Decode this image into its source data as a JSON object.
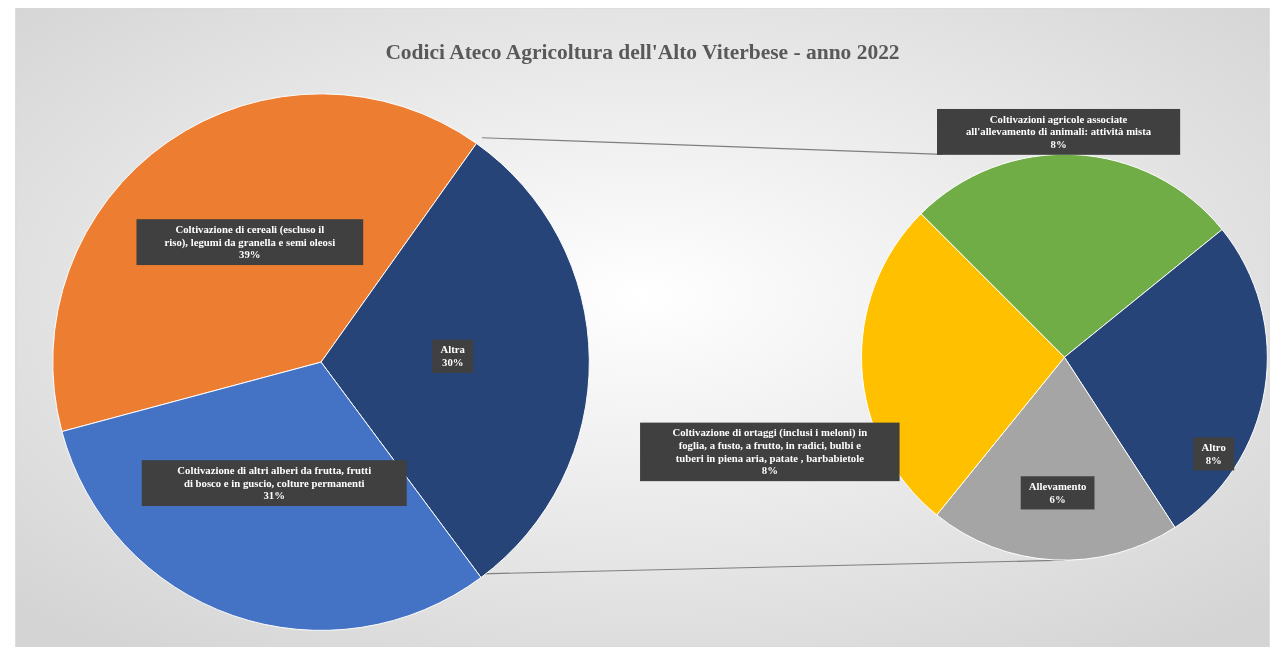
{
  "chart_data": [
    {
      "type": "pie",
      "title": "Codici Ateco Agricoltura dell'Alto Viterbese - anno 2022",
      "categories": [
        "Coltivazione di cereali (escluso il riso), legumi da granella e semi oleosi",
        "Altra",
        "Coltivazione di altri alberi da frutta, frutti di bosco e in guscio, colture permanenti"
      ],
      "values": [
        39,
        30,
        31
      ],
      "colors": [
        "#ed7d31",
        "#264478",
        "#4472c4"
      ],
      "value_labels": [
        "39%",
        "30%",
        "31%"
      ]
    },
    {
      "type": "pie",
      "categories": [
        "Coltivazioni agricole associate all'allevamento di animali: attività mista",
        "Altro",
        "Allevamento",
        "Coltivazione di ortaggi (inclusi i meloni) in foglia, a fusto, a frutto, in radici, bulbi e tuberi in piena aria, patate , barbabietole"
      ],
      "values": [
        8,
        8,
        6,
        8
      ],
      "colors": [
        "#70ad47",
        "#264478",
        "#a5a5a5",
        "#ffc000"
      ],
      "value_labels": [
        "8%",
        "8%",
        "6%",
        "8%"
      ]
    }
  ]
}
